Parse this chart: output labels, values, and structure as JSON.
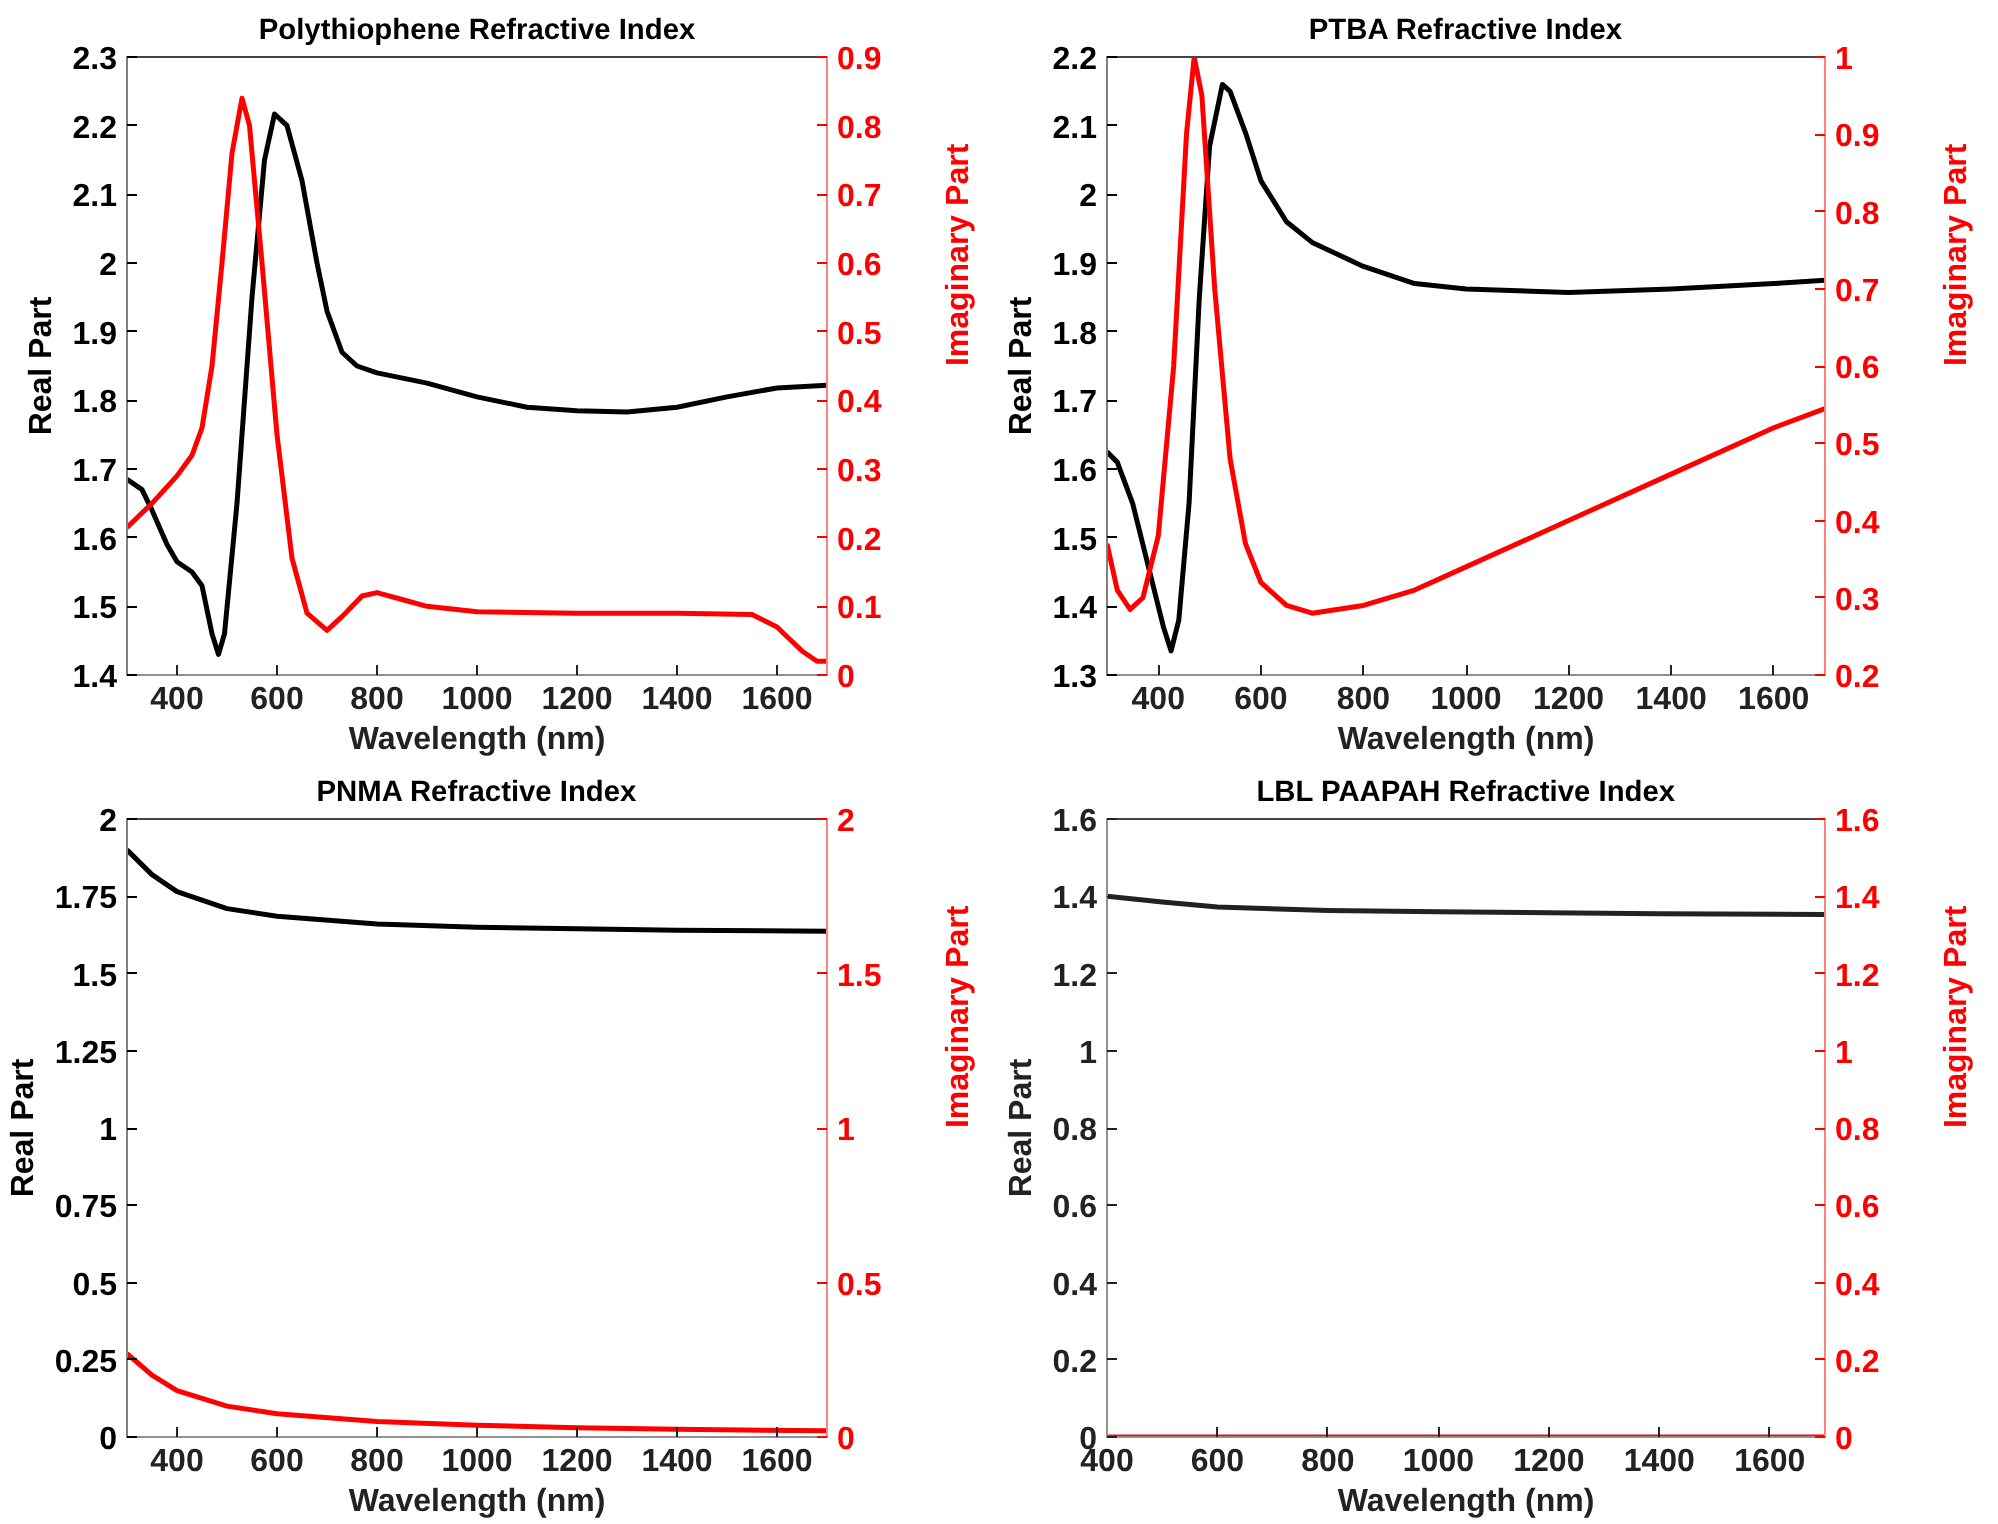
{
  "chart_data": [
    {
      "type": "line",
      "title": "Polythiophene Refractive Index",
      "xlabel": "Wavelength (nm)",
      "ylabel": "Real Part",
      "y2label": "Imaginary Part",
      "xlim": [
        300,
        1700
      ],
      "xticks": [
        400,
        600,
        800,
        1000,
        1200,
        1400,
        1600
      ],
      "ylim": [
        1.4,
        2.3
      ],
      "yticks": [
        1.4,
        1.5,
        1.6,
        1.7,
        1.8,
        1.9,
        2,
        2.1,
        2.2,
        2.3
      ],
      "y2lim": [
        0,
        0.9
      ],
      "y2ticks": [
        0,
        0.1,
        0.2,
        0.3,
        0.4,
        0.5,
        0.6,
        0.7,
        0.8,
        0.9
      ],
      "series": [
        {
          "color": "#000000",
          "x": [
            300,
            330,
            350,
            380,
            400,
            430,
            450,
            470,
            483,
            495,
            520,
            550,
            575,
            595,
            620,
            650,
            680,
            700,
            730,
            760,
            800,
            900,
            1000,
            1100,
            1200,
            1300,
            1400,
            1500,
            1600,
            1700
          ],
          "values": [
            1.685,
            1.67,
            1.64,
            1.59,
            1.565,
            1.55,
            1.53,
            1.46,
            1.43,
            1.46,
            1.65,
            1.95,
            2.15,
            2.217,
            2.2,
            2.12,
            2.0,
            1.93,
            1.87,
            1.85,
            1.84,
            1.825,
            1.805,
            1.79,
            1.785,
            1.783,
            1.79,
            1.805,
            1.818,
            1.822
          ]
        },
        {
          "color": "#ff0000",
          "axis": "y2",
          "x": [
            300,
            350,
            400,
            430,
            450,
            470,
            490,
            510,
            530,
            545,
            570,
            600,
            630,
            660,
            700,
            730,
            770,
            800,
            850,
            900,
            1000,
            1200,
            1400,
            1550,
            1600,
            1650,
            1680,
            1700
          ],
          "values": [
            0.215,
            0.25,
            0.29,
            0.32,
            0.36,
            0.45,
            0.6,
            0.76,
            0.84,
            0.8,
            0.6,
            0.35,
            0.17,
            0.09,
            0.065,
            0.085,
            0.115,
            0.12,
            0.11,
            0.1,
            0.092,
            0.09,
            0.09,
            0.088,
            0.07,
            0.035,
            0.02,
            0.02
          ]
        }
      ]
    },
    {
      "type": "line",
      "title": "PTBA Refractive Index",
      "xlabel": "Wavelength (nm)",
      "ylabel": "Real Part",
      "y2label": "Imaginary Part",
      "xlim": [
        300,
        1700
      ],
      "xticks": [
        400,
        600,
        800,
        1000,
        1200,
        1400,
        1600
      ],
      "ylim": [
        1.3,
        2.2
      ],
      "yticks": [
        1.3,
        1.4,
        1.5,
        1.6,
        1.7,
        1.8,
        1.9,
        2,
        2.1,
        2.2
      ],
      "y2lim": [
        0.2,
        1
      ],
      "y2ticks": [
        0.2,
        0.3,
        0.4,
        0.5,
        0.6,
        0.7,
        0.8,
        0.9,
        1
      ],
      "series": [
        {
          "color": "#000000",
          "x": [
            300,
            320,
            350,
            380,
            410,
            425,
            440,
            460,
            480,
            500,
            525,
            540,
            570,
            600,
            650,
            700,
            800,
            900,
            1000,
            1200,
            1400,
            1600,
            1700
          ],
          "values": [
            1.625,
            1.61,
            1.55,
            1.46,
            1.37,
            1.335,
            1.38,
            1.55,
            1.85,
            2.07,
            2.16,
            2.15,
            2.09,
            2.02,
            1.96,
            1.93,
            1.895,
            1.87,
            1.862,
            1.857,
            1.862,
            1.87,
            1.875
          ]
        },
        {
          "color": "#ff0000",
          "axis": "y2",
          "x": [
            300,
            320,
            345,
            370,
            400,
            430,
            455,
            470,
            485,
            510,
            540,
            570,
            600,
            650,
            700,
            800,
            900,
            1000,
            1200,
            1400,
            1600,
            1700
          ],
          "values": [
            0.37,
            0.31,
            0.285,
            0.3,
            0.38,
            0.6,
            0.9,
            1.0,
            0.95,
            0.7,
            0.48,
            0.37,
            0.32,
            0.29,
            0.28,
            0.29,
            0.31,
            0.34,
            0.4,
            0.46,
            0.52,
            0.545
          ]
        }
      ]
    },
    {
      "type": "line",
      "title": "PNMA Refractive Index",
      "xlabel": "Wavelength (nm)",
      "ylabel": "Real Part",
      "y2label": "Imaginary Part",
      "xlim": [
        300,
        1700
      ],
      "xticks": [
        400,
        600,
        800,
        1000,
        1200,
        1400,
        1600
      ],
      "ylim": [
        0,
        2
      ],
      "yticks": [
        0,
        0.25,
        0.5,
        0.75,
        1,
        1.25,
        1.5,
        1.75,
        2
      ],
      "y2lim": [
        0,
        2
      ],
      "y2ticks": [
        0,
        0.5,
        1,
        1.5,
        2
      ],
      "series": [
        {
          "color": "#000000",
          "x": [
            300,
            350,
            400,
            500,
            600,
            800,
            1000,
            1200,
            1400,
            1700
          ],
          "values": [
            1.9,
            1.82,
            1.765,
            1.71,
            1.685,
            1.66,
            1.65,
            1.645,
            1.64,
            1.637
          ]
        },
        {
          "color": "#ff0000",
          "axis": "y2",
          "x": [
            300,
            350,
            400,
            500,
            600,
            800,
            1000,
            1200,
            1400,
            1700
          ],
          "values": [
            0.27,
            0.2,
            0.15,
            0.1,
            0.075,
            0.05,
            0.038,
            0.03,
            0.025,
            0.02
          ]
        }
      ]
    },
    {
      "type": "line",
      "title": "LBL PAAPAH Refractive Index",
      "xlabel": "Wavelength (nm)",
      "ylabel": "Real Part",
      "y2label": "Imaginary Part",
      "xlim": [
        400,
        1700
      ],
      "xticks": [
        400,
        600,
        800,
        1000,
        1200,
        1400,
        1600
      ],
      "ylim": [
        0,
        1.6
      ],
      "yticks": [
        0,
        0.2,
        0.4,
        0.6,
        0.8,
        1,
        1.2,
        1.4,
        1.6
      ],
      "y2lim": [
        0,
        1.6
      ],
      "y2ticks": [
        0,
        0.2,
        0.4,
        0.6,
        0.8,
        1,
        1.2,
        1.4,
        1.6
      ],
      "series": [
        {
          "color": "#222222",
          "x": [
            400,
            500,
            600,
            800,
            1000,
            1200,
            1400,
            1700
          ],
          "values": [
            1.4,
            1.385,
            1.372,
            1.363,
            1.36,
            1.357,
            1.355,
            1.353
          ]
        },
        {
          "color": "#ff0000",
          "axis": "y2",
          "x": [
            400,
            600,
            800,
            1000,
            1200,
            1400,
            1700
          ],
          "values": [
            0,
            0,
            0,
            0,
            0,
            0,
            0
          ]
        }
      ]
    }
  ]
}
